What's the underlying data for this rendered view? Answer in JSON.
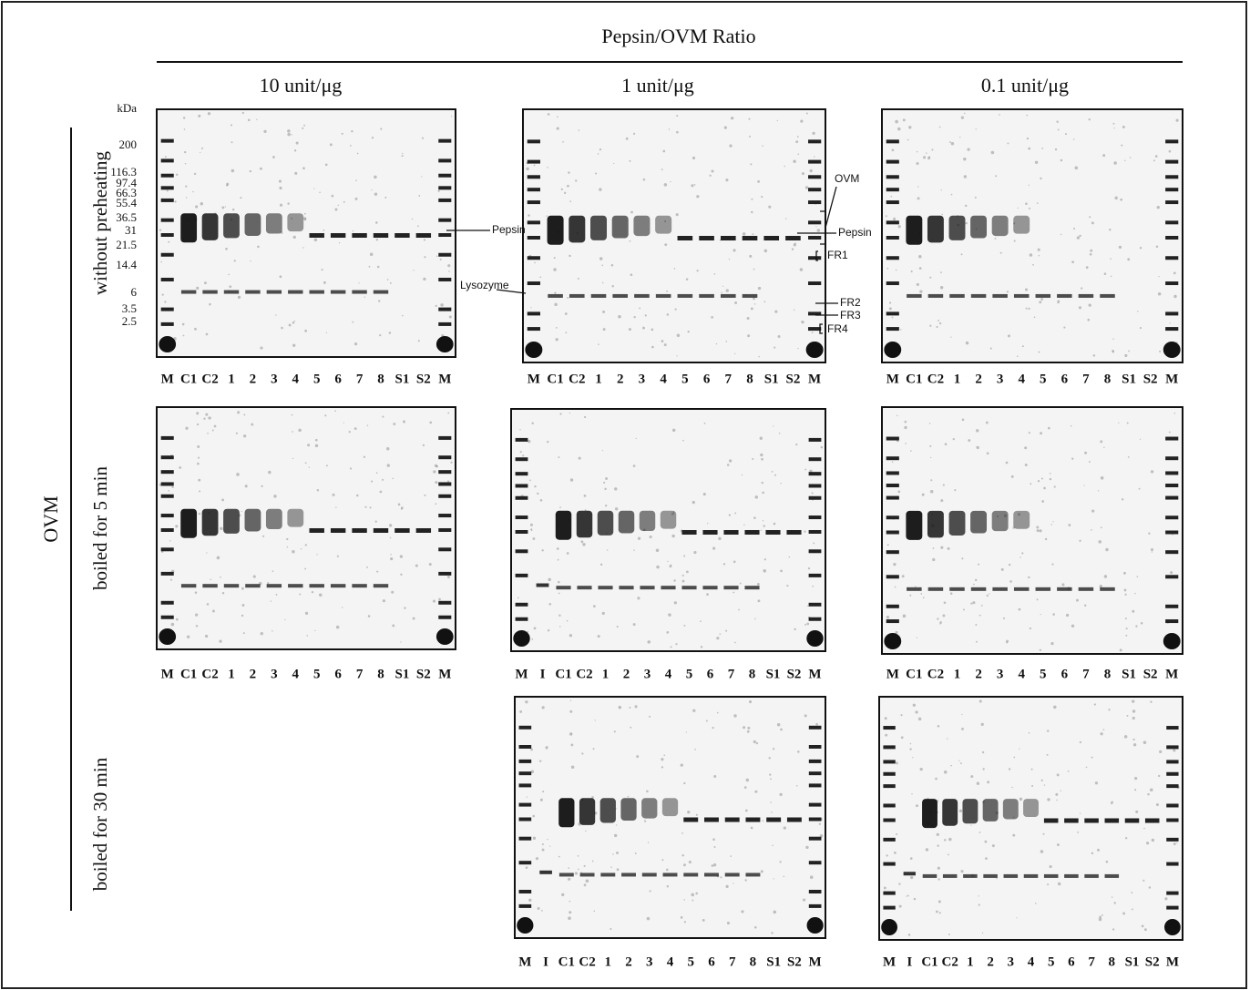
{
  "header": {
    "title": "Pepsin/OVM  Ratio",
    "columns": [
      "10 unit/μg",
      "1 unit/μg",
      "0.1 unit/μg"
    ]
  },
  "group_label": "OVM",
  "rows": [
    "without preheating",
    "boiled for 5 min",
    "boiled for 30 min"
  ],
  "markers": {
    "unit": "kDa",
    "labels": [
      "200",
      "116.3",
      "97.4",
      "66.3",
      "55.4",
      "36.5",
      "31",
      "21.5",
      "14.4",
      "6",
      "3.5",
      "2.5"
    ]
  },
  "annotations": [
    "Pepsin",
    "Lysozyme",
    "OVM",
    "Pepsin",
    "FR1",
    "FR2",
    "FR3",
    "FR4"
  ],
  "gels": [
    {
      "lanes": [
        "M",
        "C1",
        "C2",
        "1",
        "2",
        "3",
        "4",
        "5",
        "6",
        "7",
        "8",
        "S1",
        "S2",
        "M"
      ]
    },
    {
      "lanes": [
        "M",
        "C1",
        "C2",
        "1",
        "2",
        "3",
        "4",
        "5",
        "6",
        "7",
        "8",
        "S1",
        "S2",
        "M"
      ]
    },
    {
      "lanes": [
        "M",
        "C1",
        "C2",
        "1",
        "2",
        "3",
        "4",
        "5",
        "6",
        "7",
        "8",
        "S1",
        "S2",
        "M"
      ]
    },
    {
      "lanes": [
        "M",
        "C1",
        "C2",
        "1",
        "2",
        "3",
        "4",
        "5",
        "6",
        "7",
        "8",
        "S1",
        "S2",
        "M"
      ]
    },
    {
      "lanes": [
        "M",
        "I",
        "C1",
        "C2",
        "1",
        "2",
        "3",
        "4",
        "5",
        "6",
        "7",
        "8",
        "S1",
        "S2",
        "M"
      ]
    },
    {
      "lanes": [
        "M",
        "C1",
        "C2",
        "1",
        "2",
        "3",
        "4",
        "5",
        "6",
        "7",
        "8",
        "S1",
        "S2",
        "M"
      ]
    },
    {
      "lanes": [
        "M",
        "I",
        "C1",
        "C2",
        "1",
        "2",
        "3",
        "4",
        "5",
        "6",
        "7",
        "8",
        "S1",
        "S2",
        "M"
      ]
    },
    {
      "lanes": [
        "M",
        "I",
        "C1",
        "C2",
        "1",
        "2",
        "3",
        "4",
        "5",
        "6",
        "7",
        "8",
        "S1",
        "S2",
        "M"
      ]
    }
  ]
}
